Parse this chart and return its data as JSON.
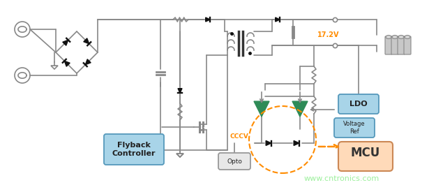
{
  "bg": "#ffffff",
  "lc": "#888888",
  "lw": 1.2,
  "watermark": "www.cntronics.com",
  "watermark_color": "#90EE90",
  "v_label": "17.2V",
  "v_color": "#FF8C00",
  "cccv_label": "CCCV",
  "cccv_color": "#FF8C00",
  "flyback_label": "Flyback\nController",
  "flyback_fc": "#a8d4e8",
  "flyback_ec": "#5599bb",
  "ldo_label": "LDO",
  "ldo_fc": "#a8d4e8",
  "ldo_ec": "#5599bb",
  "vref_label": "Voltage\nRef",
  "vref_fc": "#a8d4e8",
  "vref_ec": "#5599bb",
  "mcu_label": "MCU",
  "mcu_fc": "#FFDAB9",
  "mcu_ec": "#cc8855",
  "opto_label": "Opto",
  "opto_fc": "#e8e8e8",
  "opto_ec": "#999999",
  "tri_color": "#2E8B57",
  "dash_color": "#FF8C00",
  "arr_color": "#FF8C00",
  "batt_color": "#c8c8c8",
  "batt_ec": "#888888",
  "black": "#111111"
}
